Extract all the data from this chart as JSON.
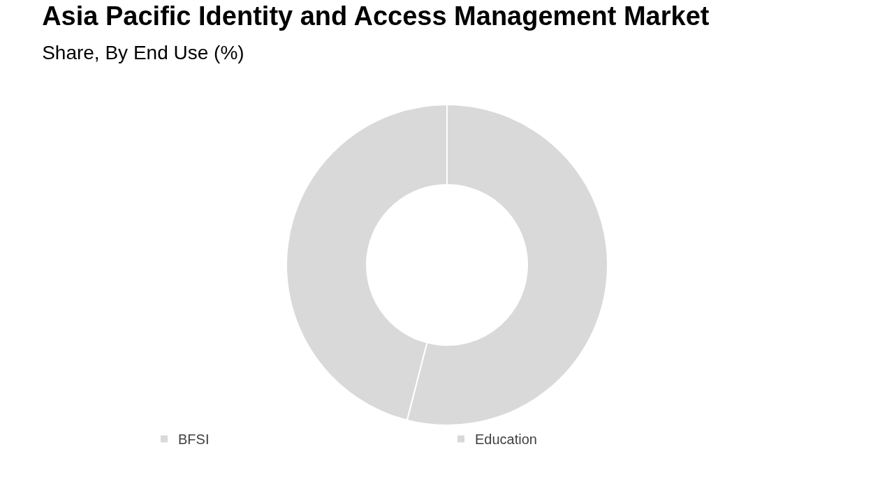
{
  "chart_data": {
    "type": "donut",
    "title": "Asia Pacific Identity and Access Management Market",
    "subtitle": "Share, By End Use (%)",
    "categories": [
      "BFSI",
      "Education"
    ],
    "values": [
      54,
      46
    ],
    "colors": [
      "#d9d9d9",
      "#d9d9d9"
    ],
    "legend": "bottom"
  }
}
